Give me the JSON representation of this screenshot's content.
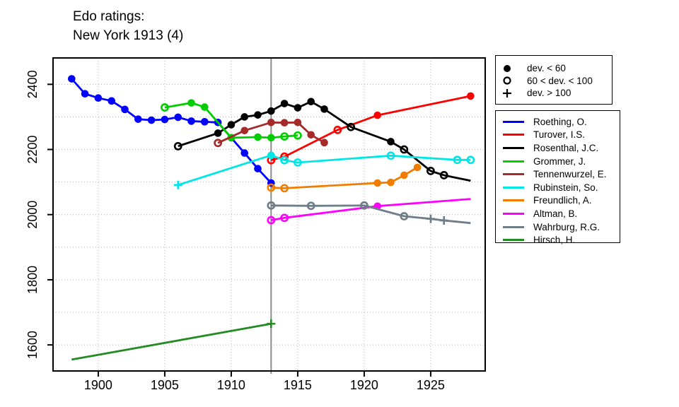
{
  "page": {
    "title_line1": "Edo ratings:",
    "title_line2": "New York 1913 (4)"
  },
  "marker_legend": [
    {
      "marker": "filled",
      "label": "dev. < 60"
    },
    {
      "marker": "open",
      "label": "60 < dev. < 100"
    },
    {
      "marker": "plus",
      "label": "dev. > 100"
    }
  ],
  "chart_data": {
    "type": "line",
    "title": "Edo ratings: New York 1913 (4)",
    "xlabel": "",
    "ylabel": "",
    "x_axis": {
      "ticks": [
        1900,
        1905,
        1910,
        1915,
        1920,
        1925
      ],
      "range": [
        1896.6,
        1929.1
      ]
    },
    "y_axis": {
      "ticks": [
        1600,
        1800,
        2000,
        2200,
        2400
      ],
      "range": [
        1520,
        2481
      ]
    },
    "grid": {
      "style": "dotted",
      "h_interval": 100,
      "v_interval": 5
    },
    "event_line": {
      "year": 1913,
      "color": "#8c8c8c"
    },
    "marker_meaning": {
      "filled": "dev. < 60",
      "open": "60 < dev. < 100",
      "plus": "dev. > 100"
    },
    "legend_position": "right-outside",
    "series": [
      {
        "name": "Roething, O.",
        "color": "#0000FF",
        "points": [
          [
            1898,
            2417,
            "filled"
          ],
          [
            1899,
            2371,
            "filled"
          ],
          [
            1900,
            2358,
            "filled"
          ],
          [
            1901,
            2349,
            "filled"
          ],
          [
            1902,
            2323,
            "filled"
          ],
          [
            1903,
            2293,
            "filled"
          ],
          [
            1904,
            2290,
            "filled"
          ],
          [
            1905,
            2292,
            "filled"
          ],
          [
            1906,
            2299,
            "filled"
          ],
          [
            1907,
            2287,
            "filled"
          ],
          [
            1908,
            2285,
            "filled"
          ],
          [
            1909,
            2283,
            "filled"
          ],
          [
            1910,
            2236,
            "filled"
          ],
          [
            1911,
            2189,
            "filled"
          ],
          [
            1912,
            2141,
            "filled"
          ],
          [
            1913,
            2097,
            "filled"
          ]
        ]
      },
      {
        "name": "Turover, I.S.",
        "color": "#FF0000",
        "points": [
          [
            1913,
            2167,
            "open"
          ],
          [
            1914,
            2178,
            "open"
          ],
          [
            1918,
            2260,
            "open"
          ],
          [
            1921,
            2305,
            "filled"
          ],
          [
            1928,
            2364,
            "filled"
          ]
        ]
      },
      {
        "name": "Rosenthal, J.C.",
        "color": "#000000",
        "points": [
          [
            1906,
            2210,
            "open"
          ],
          [
            1909,
            2250,
            "filled"
          ],
          [
            1910,
            2276,
            "filled"
          ],
          [
            1911,
            2300,
            "filled"
          ],
          [
            1912,
            2306,
            "filled"
          ],
          [
            1913,
            2318,
            "filled"
          ],
          [
            1914,
            2341,
            "filled"
          ],
          [
            1915,
            2328,
            "filled"
          ],
          [
            1916,
            2347,
            "filled"
          ],
          [
            1917,
            2324,
            "filled"
          ],
          [
            1919,
            2269,
            "open"
          ],
          [
            1922,
            2224,
            "filled"
          ],
          [
            1923,
            2200,
            "open"
          ],
          [
            1925,
            2134,
            "open"
          ],
          [
            1926,
            2121,
            "open"
          ],
          [
            1928,
            2104,
            "none"
          ]
        ]
      },
      {
        "name": "Grommer, J.",
        "color": "#00CE00",
        "points": [
          [
            1905,
            2329,
            "open"
          ],
          [
            1907,
            2343,
            "filled"
          ],
          [
            1908,
            2330,
            "filled"
          ],
          [
            1910,
            2236,
            "filled"
          ],
          [
            1912,
            2238,
            "filled"
          ],
          [
            1913,
            2236,
            "filled"
          ],
          [
            1914,
            2240,
            "open"
          ],
          [
            1915,
            2243,
            "open"
          ]
        ]
      },
      {
        "name": "Tennenwurzel, E.",
        "color": "#A52A2A",
        "points": [
          [
            1909,
            2220,
            "open"
          ],
          [
            1911,
            2258,
            "filled"
          ],
          [
            1913,
            2283,
            "filled"
          ],
          [
            1914,
            2282,
            "filled"
          ],
          [
            1915,
            2283,
            "filled"
          ],
          [
            1916,
            2245,
            "filled"
          ],
          [
            1917,
            2221,
            "filled"
          ]
        ]
      },
      {
        "name": "Rubinstein, So.",
        "color": "#00E6E6",
        "points": [
          [
            1906,
            2091,
            "plus"
          ],
          [
            1913,
            2182,
            "filled"
          ],
          [
            1914,
            2167,
            "open"
          ],
          [
            1915,
            2160,
            "open"
          ],
          [
            1922,
            2181,
            "open"
          ],
          [
            1927,
            2168,
            "open"
          ],
          [
            1928,
            2168,
            "open"
          ]
        ]
      },
      {
        "name": "Freundlich, A.",
        "color": "#F07D00",
        "points": [
          [
            1913,
            2083,
            "open"
          ],
          [
            1914,
            2081,
            "open"
          ],
          [
            1921,
            2097,
            "filled"
          ],
          [
            1922,
            2099,
            "filled"
          ],
          [
            1923,
            2121,
            "filled"
          ],
          [
            1924,
            2145,
            "filled"
          ]
        ]
      },
      {
        "name": "Altman, B.",
        "color": "#FF00FF",
        "points": [
          [
            1913,
            1983,
            "open"
          ],
          [
            1914,
            1990,
            "open"
          ],
          [
            1921,
            2026,
            "filled"
          ],
          [
            1928,
            2048,
            "none"
          ]
        ]
      },
      {
        "name": "Wahrburg, R.G.",
        "color": "#6E7D87",
        "points": [
          [
            1913,
            2028,
            "open"
          ],
          [
            1916,
            2027,
            "open"
          ],
          [
            1920,
            2028,
            "open"
          ],
          [
            1923,
            1995,
            "open"
          ],
          [
            1925,
            1987,
            "plus"
          ],
          [
            1926,
            1982,
            "plus"
          ],
          [
            1928,
            1974,
            "none"
          ]
        ]
      },
      {
        "name": "Hirsch, H.",
        "color": "#228B22",
        "points": [
          [
            1898,
            1555,
            "none"
          ],
          [
            1913,
            1665,
            "plus"
          ]
        ]
      }
    ]
  }
}
